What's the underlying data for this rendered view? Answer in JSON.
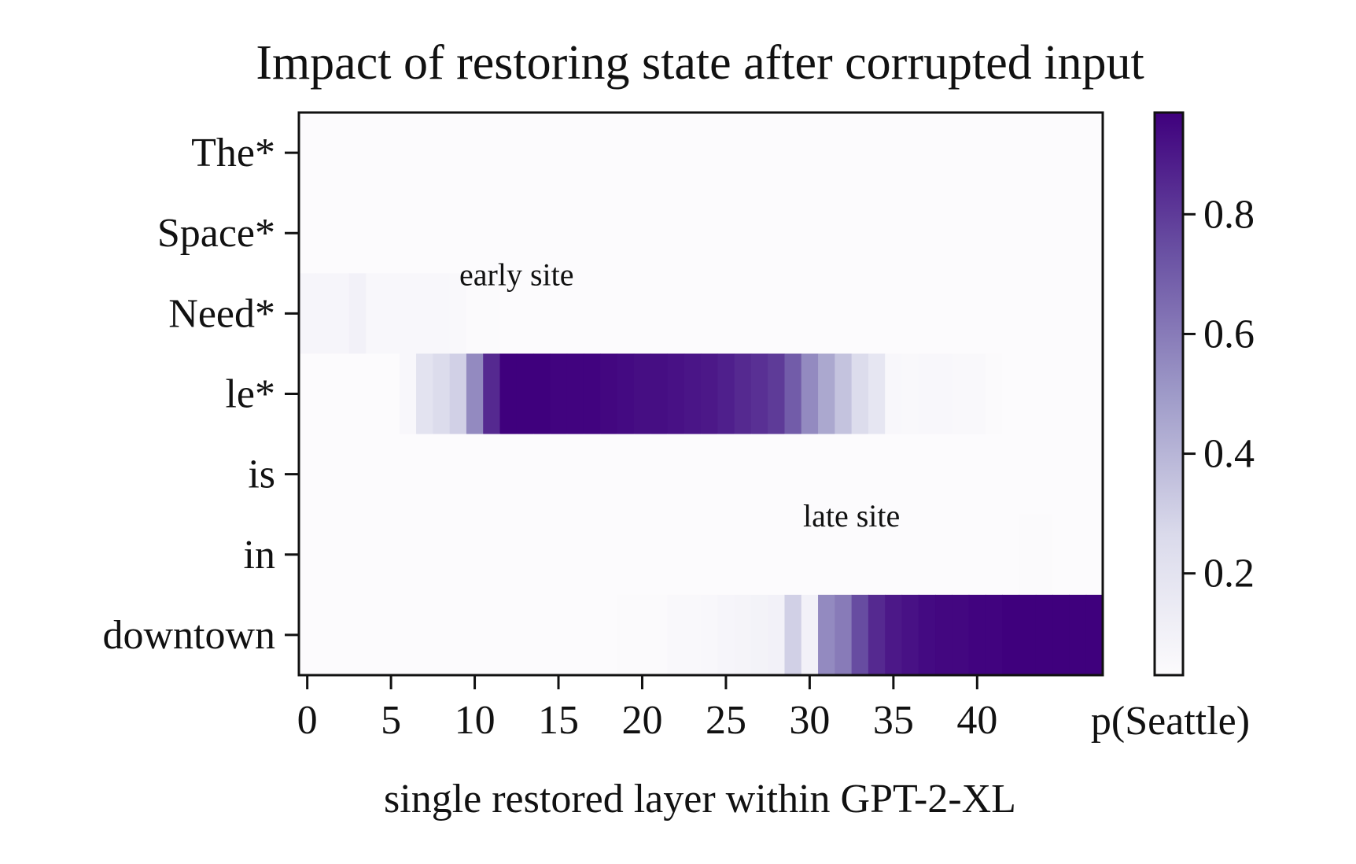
{
  "chart_data": {
    "type": "heatmap",
    "title": "Impact of restoring state after corrupted input",
    "xlabel": "single restored layer within GPT-2-XL",
    "colorbar_label": "p(Seattle)",
    "x_tick_labels": [
      "0",
      "5",
      "10",
      "15",
      "20",
      "25",
      "30",
      "35",
      "40"
    ],
    "x_tick_values": [
      0,
      5,
      10,
      15,
      20,
      25,
      30,
      35,
      40
    ],
    "num_layers": 48,
    "rows": [
      "The*",
      "Space*",
      "Need*",
      "le*",
      "is",
      "in",
      "downtown"
    ],
    "color_range": [
      0.03,
      0.97
    ],
    "colorbar_ticks": [
      {
        "value": 0.2,
        "label": "0.2"
      },
      {
        "value": 0.4,
        "label": "0.4"
      },
      {
        "value": 0.6,
        "label": "0.6"
      },
      {
        "value": 0.8,
        "label": "0.8"
      }
    ],
    "colors": {
      "low": "#fcfbfd",
      "mid": "#9e9ac8",
      "high": "#3f007d"
    },
    "annotations": [
      {
        "text": "early site",
        "layer": 12.5,
        "row_position": 2.15
      },
      {
        "text": "late site",
        "layer": 32.5,
        "row_position": 5.15
      }
    ],
    "values": [
      [
        0.03,
        0.03,
        0.03,
        0.03,
        0.03,
        0.03,
        0.03,
        0.03,
        0.03,
        0.03,
        0.03,
        0.03,
        0.03,
        0.03,
        0.03,
        0.03,
        0.03,
        0.03,
        0.03,
        0.03,
        0.03,
        0.03,
        0.03,
        0.03,
        0.03,
        0.03,
        0.03,
        0.03,
        0.03,
        0.03,
        0.03,
        0.03,
        0.03,
        0.03,
        0.03,
        0.03,
        0.03,
        0.03,
        0.03,
        0.03,
        0.03,
        0.03,
        0.03,
        0.03,
        0.03,
        0.03,
        0.03,
        0.03
      ],
      [
        0.03,
        0.03,
        0.03,
        0.03,
        0.03,
        0.03,
        0.03,
        0.03,
        0.03,
        0.03,
        0.03,
        0.03,
        0.03,
        0.03,
        0.03,
        0.03,
        0.03,
        0.03,
        0.03,
        0.03,
        0.03,
        0.03,
        0.03,
        0.03,
        0.03,
        0.03,
        0.03,
        0.03,
        0.03,
        0.03,
        0.03,
        0.03,
        0.03,
        0.03,
        0.03,
        0.03,
        0.03,
        0.03,
        0.03,
        0.03,
        0.03,
        0.03,
        0.03,
        0.03,
        0.03,
        0.03,
        0.03,
        0.03
      ],
      [
        0.07,
        0.07,
        0.07,
        0.1,
        0.06,
        0.06,
        0.06,
        0.06,
        0.06,
        0.05,
        0.04,
        0.04,
        0.03,
        0.03,
        0.03,
        0.03,
        0.03,
        0.03,
        0.03,
        0.03,
        0.03,
        0.03,
        0.03,
        0.03,
        0.03,
        0.03,
        0.03,
        0.03,
        0.03,
        0.03,
        0.03,
        0.03,
        0.03,
        0.03,
        0.03,
        0.03,
        0.03,
        0.03,
        0.03,
        0.03,
        0.03,
        0.03,
        0.03,
        0.03,
        0.03,
        0.03,
        0.03,
        0.03
      ],
      [
        0.03,
        0.03,
        0.03,
        0.03,
        0.03,
        0.03,
        0.06,
        0.2,
        0.25,
        0.3,
        0.55,
        0.85,
        0.97,
        0.97,
        0.97,
        0.96,
        0.96,
        0.96,
        0.95,
        0.94,
        0.93,
        0.93,
        0.92,
        0.91,
        0.9,
        0.88,
        0.85,
        0.83,
        0.8,
        0.7,
        0.55,
        0.45,
        0.35,
        0.25,
        0.18,
        0.06,
        0.05,
        0.06,
        0.06,
        0.05,
        0.05,
        0.04,
        0.03,
        0.03,
        0.03,
        0.03,
        0.03,
        0.03
      ],
      [
        0.03,
        0.03,
        0.03,
        0.03,
        0.03,
        0.03,
        0.03,
        0.03,
        0.03,
        0.03,
        0.03,
        0.03,
        0.03,
        0.03,
        0.03,
        0.03,
        0.03,
        0.03,
        0.03,
        0.03,
        0.03,
        0.03,
        0.03,
        0.03,
        0.03,
        0.03,
        0.03,
        0.03,
        0.03,
        0.03,
        0.03,
        0.03,
        0.03,
        0.03,
        0.03,
        0.03,
        0.03,
        0.03,
        0.03,
        0.03,
        0.03,
        0.03,
        0.03,
        0.03,
        0.03,
        0.03,
        0.03,
        0.03
      ],
      [
        0.03,
        0.03,
        0.03,
        0.03,
        0.03,
        0.03,
        0.03,
        0.03,
        0.03,
        0.03,
        0.03,
        0.03,
        0.03,
        0.03,
        0.03,
        0.03,
        0.03,
        0.03,
        0.03,
        0.03,
        0.03,
        0.03,
        0.03,
        0.03,
        0.03,
        0.03,
        0.03,
        0.03,
        0.03,
        0.03,
        0.03,
        0.03,
        0.03,
        0.03,
        0.03,
        0.03,
        0.03,
        0.03,
        0.03,
        0.03,
        0.03,
        0.03,
        0.03,
        0.04,
        0.04,
        0.03,
        0.03,
        0.03
      ],
      [
        0.03,
        0.03,
        0.03,
        0.03,
        0.03,
        0.03,
        0.03,
        0.03,
        0.03,
        0.03,
        0.03,
        0.03,
        0.03,
        0.03,
        0.03,
        0.03,
        0.03,
        0.03,
        0.03,
        0.04,
        0.04,
        0.04,
        0.05,
        0.05,
        0.06,
        0.07,
        0.08,
        0.09,
        0.1,
        0.3,
        0.1,
        0.55,
        0.6,
        0.75,
        0.85,
        0.9,
        0.92,
        0.94,
        0.95,
        0.95,
        0.96,
        0.96,
        0.97,
        0.97,
        0.97,
        0.97,
        0.97,
        0.97
      ]
    ]
  }
}
